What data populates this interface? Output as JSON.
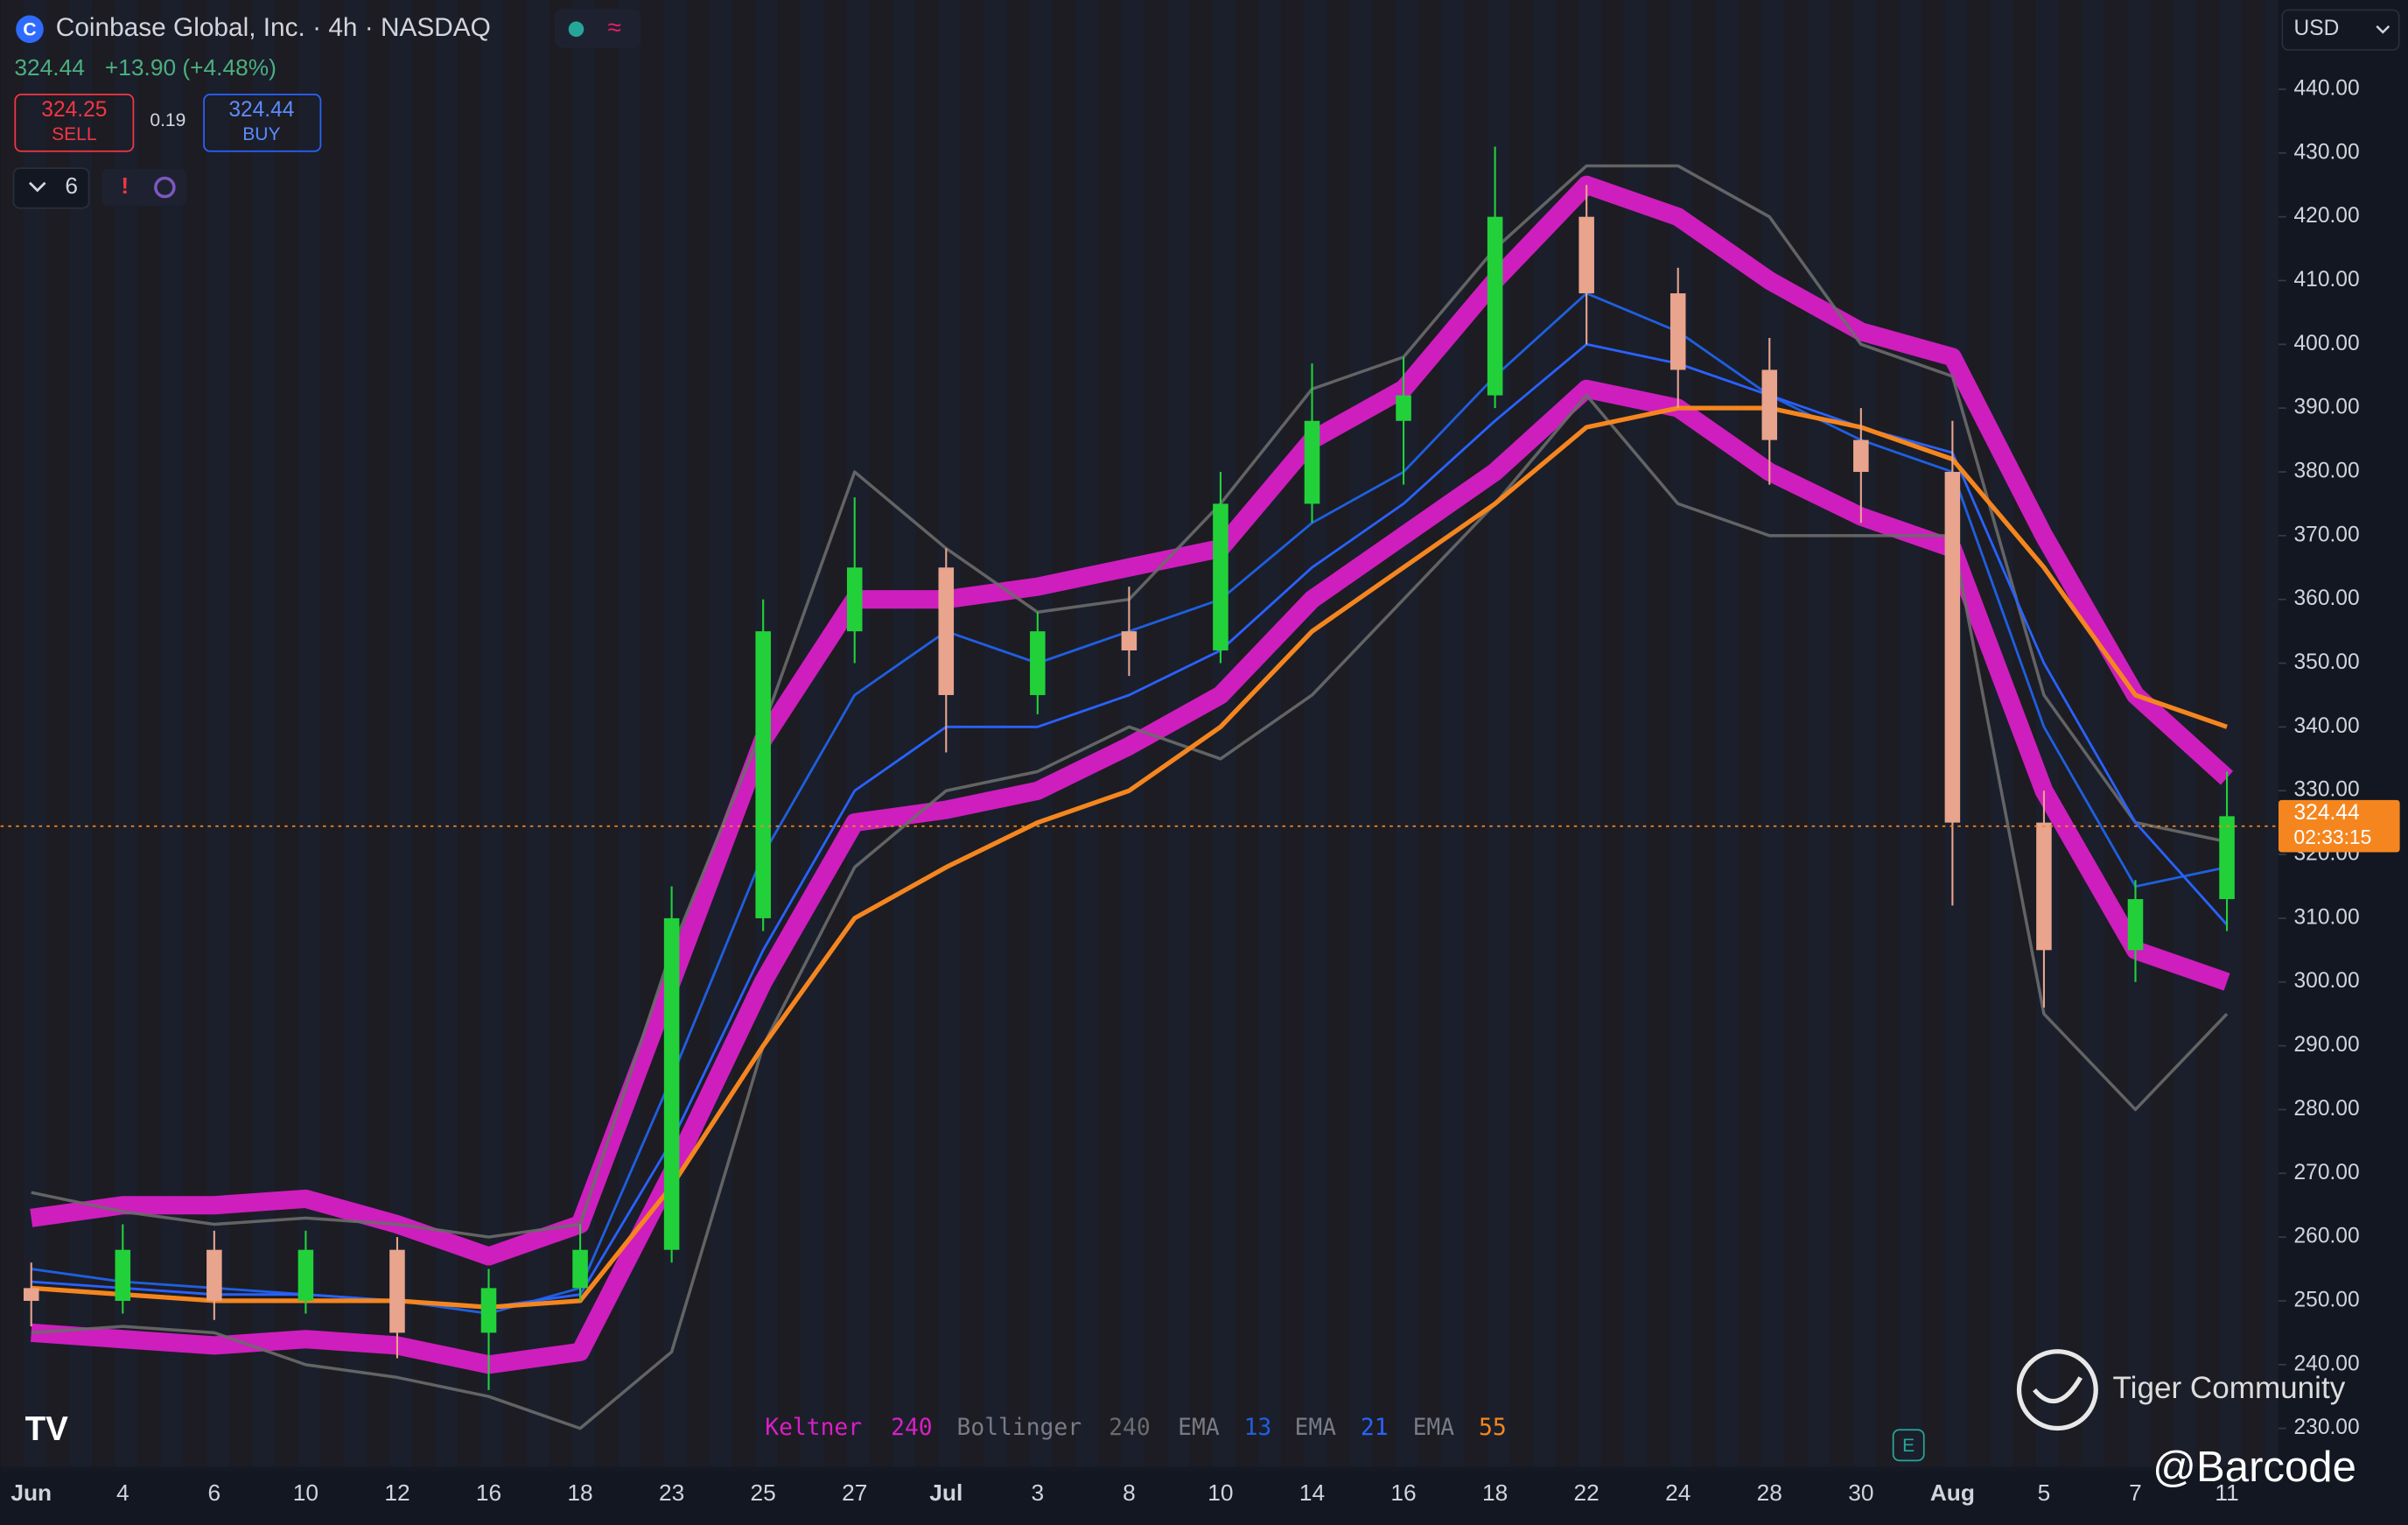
{
  "header": {
    "title": "Coinbase Global, Inc. · 4h · NASDAQ",
    "price": "324.44",
    "change": "+13.90 (+4.48%)",
    "sell_price": "324.25",
    "sell_label": "SELL",
    "spread": "0.19",
    "buy_price": "324.44",
    "buy_label": "BUY",
    "indicator_count": "6",
    "currency": "USD"
  },
  "watermark": {
    "brand": "Tiger Community",
    "author": "@Barcode"
  },
  "chart_data": {
    "type": "candlestick",
    "categories": [
      "Jun",
      "4",
      "6",
      "10",
      "12",
      "16",
      "18",
      "23",
      "25",
      "27",
      "Jul",
      "3",
      "8",
      "10",
      "14",
      "16",
      "18",
      "22",
      "24",
      "28",
      "30",
      "Aug",
      "5",
      "7",
      "11"
    ],
    "candles": {
      "open": [
        252,
        250,
        258,
        250,
        258,
        245,
        252,
        258,
        310,
        355,
        365,
        345,
        355,
        352,
        375,
        388,
        392,
        420,
        408,
        396,
        385,
        380,
        325,
        305,
        313
      ],
      "high": [
        256,
        262,
        261,
        261,
        260,
        255,
        262,
        315,
        360,
        376,
        368,
        358,
        362,
        380,
        397,
        398,
        431,
        425,
        412,
        401,
        390,
        388,
        330,
        316,
        333
      ],
      "low": [
        246,
        248,
        247,
        248,
        241,
        236,
        250,
        256,
        308,
        350,
        336,
        342,
        348,
        350,
        372,
        378,
        390,
        400,
        390,
        378,
        372,
        312,
        296,
        300,
        308
      ],
      "close": [
        250,
        258,
        250,
        258,
        245,
        252,
        258,
        310,
        355,
        365,
        345,
        355,
        352,
        375,
        388,
        392,
        420,
        408,
        396,
        385,
        380,
        325,
        305,
        313,
        326
      ],
      "up_color": "#22d13a",
      "down_color": "#e8a48c"
    },
    "overlays": [
      {
        "name": "Keltner",
        "period": "240",
        "color": "#d81fc6",
        "upper": [
          263,
          265,
          265,
          266,
          262,
          257,
          262,
          300,
          338,
          360,
          360,
          362,
          365,
          368,
          385,
          393,
          410,
          425,
          420,
          410,
          402,
          398,
          370,
          345,
          332
        ],
        "lower": [
          245,
          244,
          243,
          244,
          243,
          240,
          242,
          270,
          300,
          325,
          327,
          330,
          337,
          345,
          360,
          370,
          380,
          393,
          390,
          380,
          373,
          368,
          330,
          305,
          300
        ]
      },
      {
        "name": "Bollinger",
        "period": "240",
        "color": "#6b6b6b",
        "upper": [
          267,
          264,
          262,
          263,
          262,
          260,
          262,
          305,
          340,
          380,
          368,
          358,
          360,
          375,
          393,
          398,
          415,
          428,
          428,
          420,
          400,
          395,
          345,
          325,
          322
        ],
        "lower": [
          245,
          246,
          245,
          240,
          238,
          235,
          230,
          242,
          290,
          318,
          330,
          333,
          340,
          335,
          345,
          360,
          375,
          392,
          375,
          370,
          370,
          370,
          295,
          280,
          295
        ]
      },
      {
        "name": "EMA",
        "period": "13",
        "color": "#1f5fe0",
        "values": [
          255,
          253,
          252,
          251,
          250,
          248,
          252,
          285,
          320,
          345,
          355,
          350,
          355,
          360,
          372,
          380,
          395,
          408,
          402,
          392,
          385,
          380,
          340,
          315,
          318
        ]
      },
      {
        "name": "EMA",
        "period": "21",
        "color": "#2962ff",
        "values": [
          253,
          252,
          251,
          251,
          250,
          249,
          251,
          275,
          305,
          330,
          340,
          340,
          345,
          352,
          365,
          375,
          388,
          400,
          397,
          392,
          387,
          383,
          350,
          325,
          309
        ]
      },
      {
        "name": "EMA",
        "period": "55",
        "color": "#f5861f",
        "values": [
          252,
          251,
          250,
          250,
          250,
          249,
          250,
          268,
          290,
          310,
          318,
          325,
          330,
          340,
          355,
          365,
          375,
          387,
          390,
          390,
          387,
          382,
          365,
          345,
          340
        ]
      }
    ],
    "last_price": {
      "value": 324.44,
      "label": "324.44",
      "countdown": "02:33:15",
      "color": "#f5861f"
    },
    "ylim": [
      224,
      454
    ],
    "yticks": [
      {
        "value": 230,
        "label": "230.00"
      },
      {
        "value": 240,
        "label": "240.00"
      },
      {
        "value": 250,
        "label": "250.00"
      },
      {
        "value": 260,
        "label": "260.00"
      },
      {
        "value": 270,
        "label": "270.00"
      },
      {
        "value": 280,
        "label": "280.00"
      },
      {
        "value": 290,
        "label": "290.00"
      },
      {
        "value": 300,
        "label": "300.00"
      },
      {
        "value": 310,
        "label": "310.00"
      },
      {
        "value": 320,
        "label": "320.00"
      },
      {
        "value": 330,
        "label": "330.00"
      },
      {
        "value": 340,
        "label": "340.00"
      },
      {
        "value": 350,
        "label": "350.00"
      },
      {
        "value": 360,
        "label": "360.00"
      },
      {
        "value": 370,
        "label": "370.00"
      },
      {
        "value": 380,
        "label": "380.00"
      },
      {
        "value": 390,
        "label": "390.00"
      },
      {
        "value": 400,
        "label": "400.00"
      },
      {
        "value": 410,
        "label": "410.00"
      },
      {
        "value": 420,
        "label": "420.00"
      },
      {
        "value": 430,
        "label": "430.00"
      },
      {
        "value": 440,
        "label": "440.00"
      }
    ],
    "grid": false
  }
}
